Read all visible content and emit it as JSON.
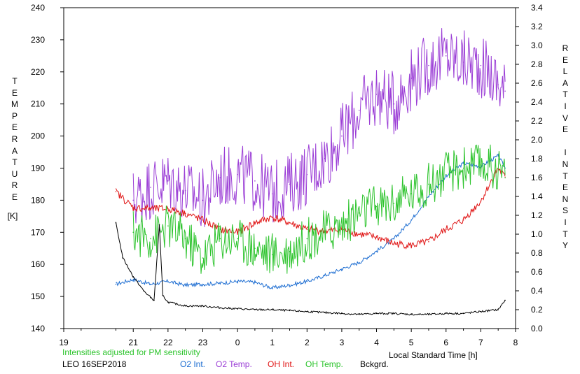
{
  "chart_data": {
    "type": "line",
    "xlabel": "Local Standard Time [h]",
    "x_ticks": [
      "19",
      "21",
      "22",
      "23",
      "0",
      "1",
      "2",
      "3",
      "4",
      "5",
      "6",
      "7",
      "8"
    ],
    "y_left_label": "TEMPERATURE",
    "y_left_unit": "[K]",
    "y_left_ticks": [
      "240",
      "230",
      "220",
      "210",
      "200",
      "190",
      "180",
      "170",
      "160",
      "150",
      "140"
    ],
    "y_right_label": "RELATIVE INTENSITY",
    "y_right_ticks": [
      "3.4",
      "3.2",
      "3.0",
      "2.8",
      "2.6",
      "2.4",
      "2.2",
      "2.0",
      "1.8",
      "1.6",
      "1.4",
      "1.2",
      "1.0",
      "0.8",
      "0.6",
      "0.4",
      "0.2",
      "0.0"
    ],
    "xlim": [
      19,
      32
    ],
    "ylim_left": [
      140,
      240
    ],
    "ylim_right": [
      0,
      3.4
    ],
    "note": "Intensities adjusted for PM sensitivity",
    "station": "LEO 16SEP2018",
    "colors": {
      "O2 Int.": "#1e6ed2",
      "O2 Temp.": "#9b3ed6",
      "OH Int.": "#e01414",
      "OH Temp.": "#2ec42e",
      "Bckgrd.": "#000000"
    },
    "series": [
      {
        "name": "O2 Int.",
        "axis": "right",
        "color": "#1e6ed2",
        "x": [
          20.5,
          21,
          21.5,
          22,
          22.5,
          23,
          23.5,
          24,
          24.5,
          25,
          25.5,
          26,
          26.5,
          27,
          27.5,
          28,
          28.5,
          29,
          29.5,
          30,
          30.5,
          31,
          31.5,
          31.7
        ],
        "y": [
          0.47,
          0.52,
          0.47,
          0.5,
          0.46,
          0.47,
          0.48,
          0.5,
          0.49,
          0.43,
          0.46,
          0.5,
          0.56,
          0.63,
          0.7,
          0.82,
          0.95,
          1.15,
          1.4,
          1.62,
          1.75,
          1.72,
          1.83,
          1.7
        ]
      },
      {
        "name": "O2 Temp.",
        "axis": "left",
        "color": "#9b3ed6",
        "x": [
          21,
          21.5,
          22,
          22.5,
          23,
          23.5,
          24,
          24.5,
          25,
          25.5,
          26,
          26.5,
          27,
          27.5,
          28,
          28.5,
          29,
          29.5,
          30,
          30.5,
          31,
          31.5,
          31.7
        ],
        "y": [
          180,
          184,
          186,
          183,
          180,
          187,
          188,
          186,
          182,
          185,
          188,
          193,
          200,
          208,
          213,
          210,
          218,
          222,
          225,
          223,
          222,
          216,
          214
        ]
      },
      {
        "name": "OH Int.",
        "axis": "right",
        "color": "#e01414",
        "x": [
          20.5,
          21,
          21.5,
          22,
          22.5,
          23,
          23.5,
          24,
          24.5,
          25,
          25.5,
          26,
          26.5,
          27,
          27.5,
          28,
          28.5,
          29,
          29.5,
          30,
          30.5,
          31,
          31.5,
          31.7
        ],
        "y": [
          1.45,
          1.28,
          1.27,
          1.27,
          1.22,
          1.15,
          1.05,
          1.02,
          1.12,
          1.18,
          1.12,
          1.05,
          1.03,
          1.05,
          1.0,
          0.97,
          0.9,
          0.88,
          0.92,
          1.05,
          1.15,
          1.35,
          1.7,
          1.6
        ]
      },
      {
        "name": "OH Temp.",
        "axis": "left",
        "color": "#2ec42e",
        "x": [
          21,
          21.5,
          22,
          22.5,
          23,
          23.5,
          24,
          24.5,
          25,
          25.5,
          26,
          26.5,
          27,
          27.5,
          28,
          28.5,
          29,
          29.5,
          30,
          30.5,
          31,
          31.5,
          31.7
        ],
        "y": [
          170,
          168,
          172,
          168,
          162,
          168,
          168,
          165,
          163,
          164,
          168,
          170,
          172,
          176,
          178,
          179,
          182,
          185,
          188,
          190,
          191,
          190,
          187
        ]
      },
      {
        "name": "Bckgrd.",
        "axis": "right",
        "color": "#000000",
        "x": [
          20.5,
          20.7,
          21,
          21.3,
          21.5,
          21.6,
          21.75,
          21.85,
          22,
          22.5,
          23,
          23.5,
          24,
          24.5,
          25,
          25.5,
          26,
          26.5,
          27,
          27.5,
          28,
          28.5,
          29,
          29.5,
          30,
          30.5,
          31,
          31.5,
          31.7
        ],
        "y": [
          1.12,
          0.75,
          0.55,
          0.4,
          0.33,
          0.3,
          1.1,
          0.35,
          0.28,
          0.24,
          0.24,
          0.22,
          0.21,
          0.2,
          0.2,
          0.19,
          0.18,
          0.17,
          0.16,
          0.15,
          0.16,
          0.16,
          0.15,
          0.15,
          0.16,
          0.16,
          0.18,
          0.2,
          0.3
        ]
      }
    ]
  }
}
